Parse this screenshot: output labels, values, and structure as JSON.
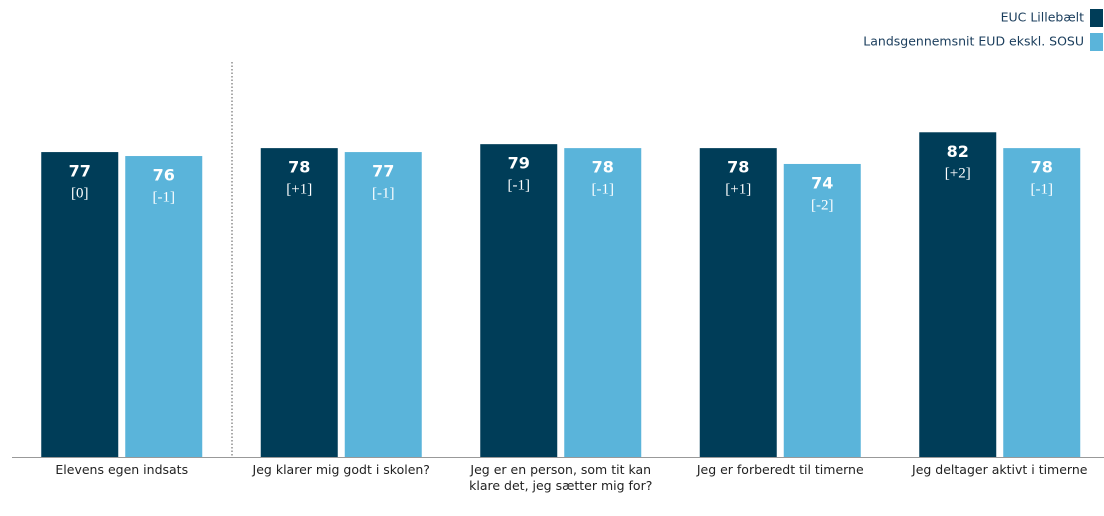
{
  "chart_data": {
    "type": "bar",
    "categories": [
      "Elevens egen indsats",
      "Jeg klarer mig godt i skolen?",
      "Jeg er en person, som tit kan klare det, jeg sætter mig for?",
      "Jeg er forberedt til timerne",
      "Jeg deltager aktivt i timerne"
    ],
    "series": [
      {
        "name": "EUC Lillebælt",
        "color": "#003d58",
        "values": [
          77,
          78,
          79,
          78,
          82
        ],
        "changes": [
          "[0]",
          "[+1]",
          "[-1]",
          "[+1]",
          "[+2]"
        ]
      },
      {
        "name": "Landsgennemsnit EUD ekskl. SOSU",
        "color": "#5ab4da",
        "values": [
          76,
          77,
          78,
          74,
          78
        ],
        "changes": [
          "[-1]",
          "[-1]",
          "[-1]",
          "[-2]",
          "[-1]"
        ]
      }
    ],
    "ylim": [
      0,
      100
    ],
    "legend": "top-right"
  }
}
